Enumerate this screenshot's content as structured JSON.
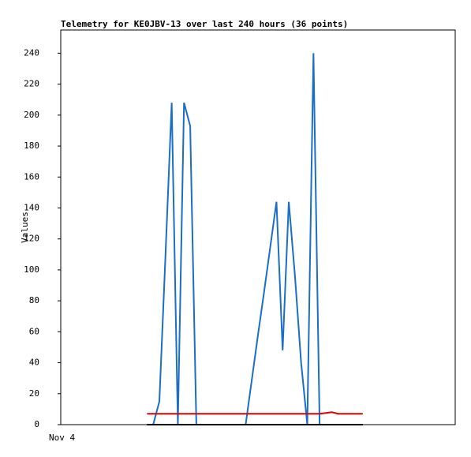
{
  "chart_data": {
    "type": "line",
    "title": "Telemetry for KE0JBV-13 over last 240 hours (36 points)",
    "y_label": "Values",
    "categories": [
      "Nov 4",
      null,
      null,
      null,
      null,
      null,
      null,
      null,
      null,
      null,
      null,
      null,
      null,
      null,
      null,
      null,
      null,
      null,
      null,
      null,
      null,
      null,
      null,
      null,
      null,
      null,
      null,
      null,
      null,
      null,
      null,
      null,
      null,
      null,
      null,
      null,
      null,
      null,
      null,
      null,
      null,
      null,
      null,
      null,
      null,
      null,
      null,
      null,
      null,
      null,
      null,
      null,
      null,
      null,
      null,
      null,
      null,
      null,
      null,
      null,
      null,
      null,
      null,
      null
    ],
    "series": [
      {
        "color": "#1a6ec8",
        "values": [
          null,
          null,
          null,
          null,
          null,
          null,
          null,
          null,
          null,
          null,
          null,
          null,
          null,
          null,
          0,
          0,
          15,
          110,
          208,
          0,
          208,
          193,
          0,
          0,
          0,
          0,
          0,
          0,
          0,
          0,
          0,
          29,
          58,
          86,
          115,
          144,
          48,
          144,
          96,
          40,
          0,
          240,
          0,
          0,
          0,
          0,
          0,
          0,
          0,
          0,
          null,
          null,
          null,
          null,
          null,
          null,
          null,
          null,
          null,
          null,
          null,
          null,
          null,
          null
        ]
      },
      {
        "color": "#e00000",
        "values": [
          null,
          null,
          null,
          null,
          null,
          null,
          null,
          null,
          null,
          null,
          null,
          null,
          null,
          null,
          7,
          7,
          7,
          7,
          7,
          7,
          7,
          7,
          7,
          7,
          7,
          7,
          7,
          7,
          7,
          7,
          7,
          7,
          7,
          7,
          7,
          7,
          7,
          7,
          7,
          7,
          7,
          7,
          7,
          7.5,
          8,
          7,
          7,
          7,
          7,
          7,
          null,
          null,
          null,
          null,
          null,
          null,
          null,
          null,
          null,
          null,
          null,
          null,
          null,
          null
        ]
      },
      {
        "color": "#000000",
        "values": [
          null,
          null,
          null,
          null,
          null,
          null,
          null,
          null,
          null,
          null,
          null,
          null,
          null,
          null,
          0,
          0,
          0,
          0,
          0,
          0,
          0,
          0,
          0,
          0,
          0,
          0,
          0,
          0,
          0,
          0,
          0,
          0,
          0,
          0,
          0,
          0,
          0,
          0,
          0,
          0,
          0,
          0,
          0,
          0,
          0,
          0,
          0,
          0,
          0,
          0,
          null,
          null,
          null,
          null,
          null,
          null,
          null,
          null,
          null,
          null,
          null,
          null,
          null,
          null
        ]
      }
    ],
    "ylim": [
      0,
      255
    ],
    "yticks": [
      0,
      20,
      40,
      60,
      80,
      100,
      120,
      140,
      160,
      180,
      200,
      220,
      240
    ]
  }
}
